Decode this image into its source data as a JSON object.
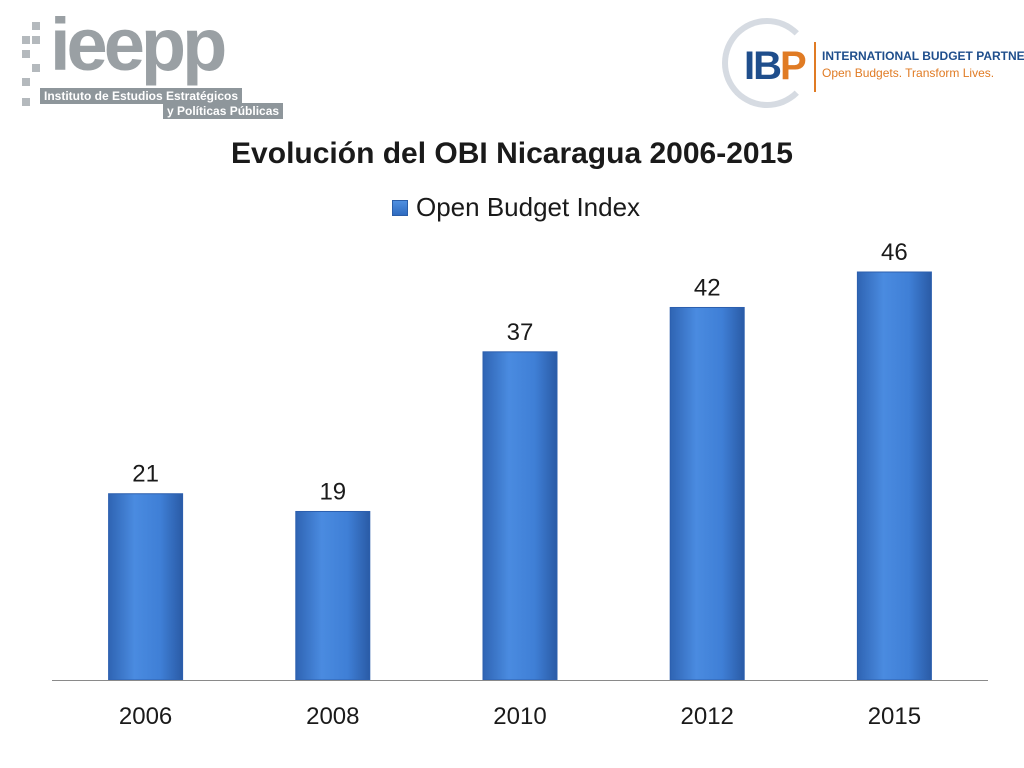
{
  "logos": {
    "ieepp": {
      "wordmark": "ieepp",
      "line1": "Instituto de Estudios Estratégicos",
      "line2": "y Políticas Públicas"
    },
    "ibp": {
      "mark": "IB",
      "mark_p": "P",
      "name": "INTERNATIONAL BUDGET PARTNERSHIP",
      "tagline": "Open Budgets. Transform Lives."
    }
  },
  "chart_data": {
    "type": "bar",
    "title": "Evolución del OBI Nicaragua 2006-2015",
    "categories": [
      "2006",
      "2008",
      "2010",
      "2012",
      "2015"
    ],
    "series": [
      {
        "name": "Open Budget Index",
        "values": [
          21,
          19,
          37,
          42,
          46
        ]
      }
    ],
    "ylim": [
      0,
      52
    ],
    "grid": false,
    "legend": "top-center",
    "data_labels": true,
    "colors": {
      "bar": "#3f7fd6",
      "bar_dark": "#2c5fae",
      "axis": "#8a8a8a"
    }
  }
}
